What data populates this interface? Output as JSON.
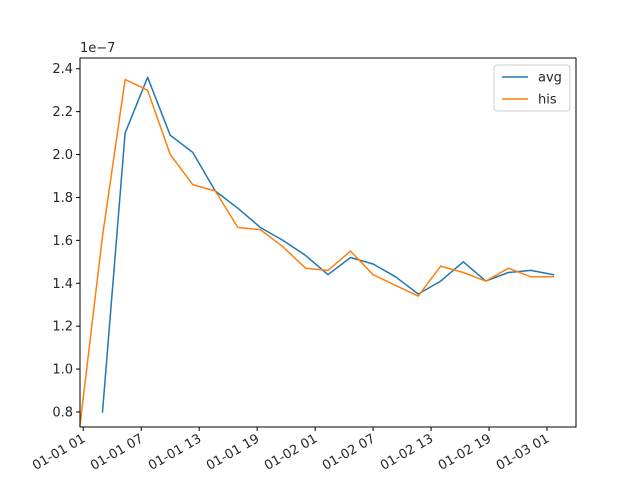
{
  "chart_data": {
    "type": "line",
    "title": "",
    "xlabel": "",
    "ylabel": "",
    "y_offset_text": "1e−7",
    "x_tick_labels": [
      "01-01 01",
      "01-01 07",
      "01-01 13",
      "01-01 19",
      "01-02 01",
      "01-02 07",
      "01-02 13",
      "01-02 19",
      "01-03 01"
    ],
    "y_tick_labels": [
      "0.8",
      "1.0",
      "1.2",
      "1.4",
      "1.6",
      "1.8",
      "2.0",
      "2.2",
      "2.4"
    ],
    "y_ticks": [
      0.8,
      1.0,
      1.2,
      1.4,
      1.6,
      1.8,
      2.0,
      2.2,
      2.4
    ],
    "x_range": [
      "2023-01-01 00:40",
      "2023-01-03 04:00"
    ],
    "ylim": [
      0.73,
      2.45
    ],
    "x_tick_times": [
      "2023-01-01 01:00",
      "2023-01-01 07:00",
      "2023-01-01 13:00",
      "2023-01-01 19:00",
      "2023-01-02 01:00",
      "2023-01-02 07:00",
      "2023-01-02 13:00",
      "2023-01-02 19:00",
      "2023-01-03 01:00"
    ],
    "legend_position": "top-right",
    "grid": false,
    "series": [
      {
        "name": "avg",
        "color": "#1f77b4",
        "x": [
          "2023-01-01 03:00",
          "2023-01-01 05:20",
          "2023-01-01 07:40",
          "2023-01-01 10:00",
          "2023-01-01 12:20",
          "2023-01-01 14:40",
          "2023-01-01 17:00",
          "2023-01-01 19:20",
          "2023-01-01 21:40",
          "2023-01-02 00:00",
          "2023-01-02 02:20",
          "2023-01-02 04:40",
          "2023-01-02 07:00",
          "2023-01-02 09:20",
          "2023-01-02 11:40",
          "2023-01-02 14:00",
          "2023-01-02 16:20",
          "2023-01-02 18:40",
          "2023-01-02 21:00",
          "2023-01-02 23:20",
          "2023-01-03 01:40"
        ],
        "values": [
          0.8,
          2.1,
          2.36,
          2.09,
          2.01,
          1.83,
          1.75,
          1.66,
          1.6,
          1.53,
          1.44,
          1.52,
          1.49,
          1.43,
          1.35,
          1.41,
          1.5,
          1.41,
          1.45,
          1.46,
          1.44
        ]
      },
      {
        "name": "his",
        "color": "#ff7f0e",
        "x": [
          "2023-01-01 00:40",
          "2023-01-01 03:00",
          "2023-01-01 05:20",
          "2023-01-01 07:40",
          "2023-01-01 10:00",
          "2023-01-01 12:20",
          "2023-01-01 14:40",
          "2023-01-01 17:00",
          "2023-01-01 19:20",
          "2023-01-01 21:40",
          "2023-01-02 00:00",
          "2023-01-02 02:20",
          "2023-01-02 04:40",
          "2023-01-02 07:00",
          "2023-01-02 09:20",
          "2023-01-02 11:40",
          "2023-01-02 14:00",
          "2023-01-02 16:20",
          "2023-01-02 18:40",
          "2023-01-02 21:00",
          "2023-01-02 23:20",
          "2023-01-03 01:40"
        ],
        "values": [
          0.74,
          1.62,
          2.35,
          2.3,
          2.0,
          1.86,
          1.83,
          1.66,
          1.65,
          1.57,
          1.47,
          1.46,
          1.55,
          1.44,
          1.39,
          1.34,
          1.48,
          1.45,
          1.41,
          1.47,
          1.43,
          1.43
        ]
      }
    ]
  }
}
